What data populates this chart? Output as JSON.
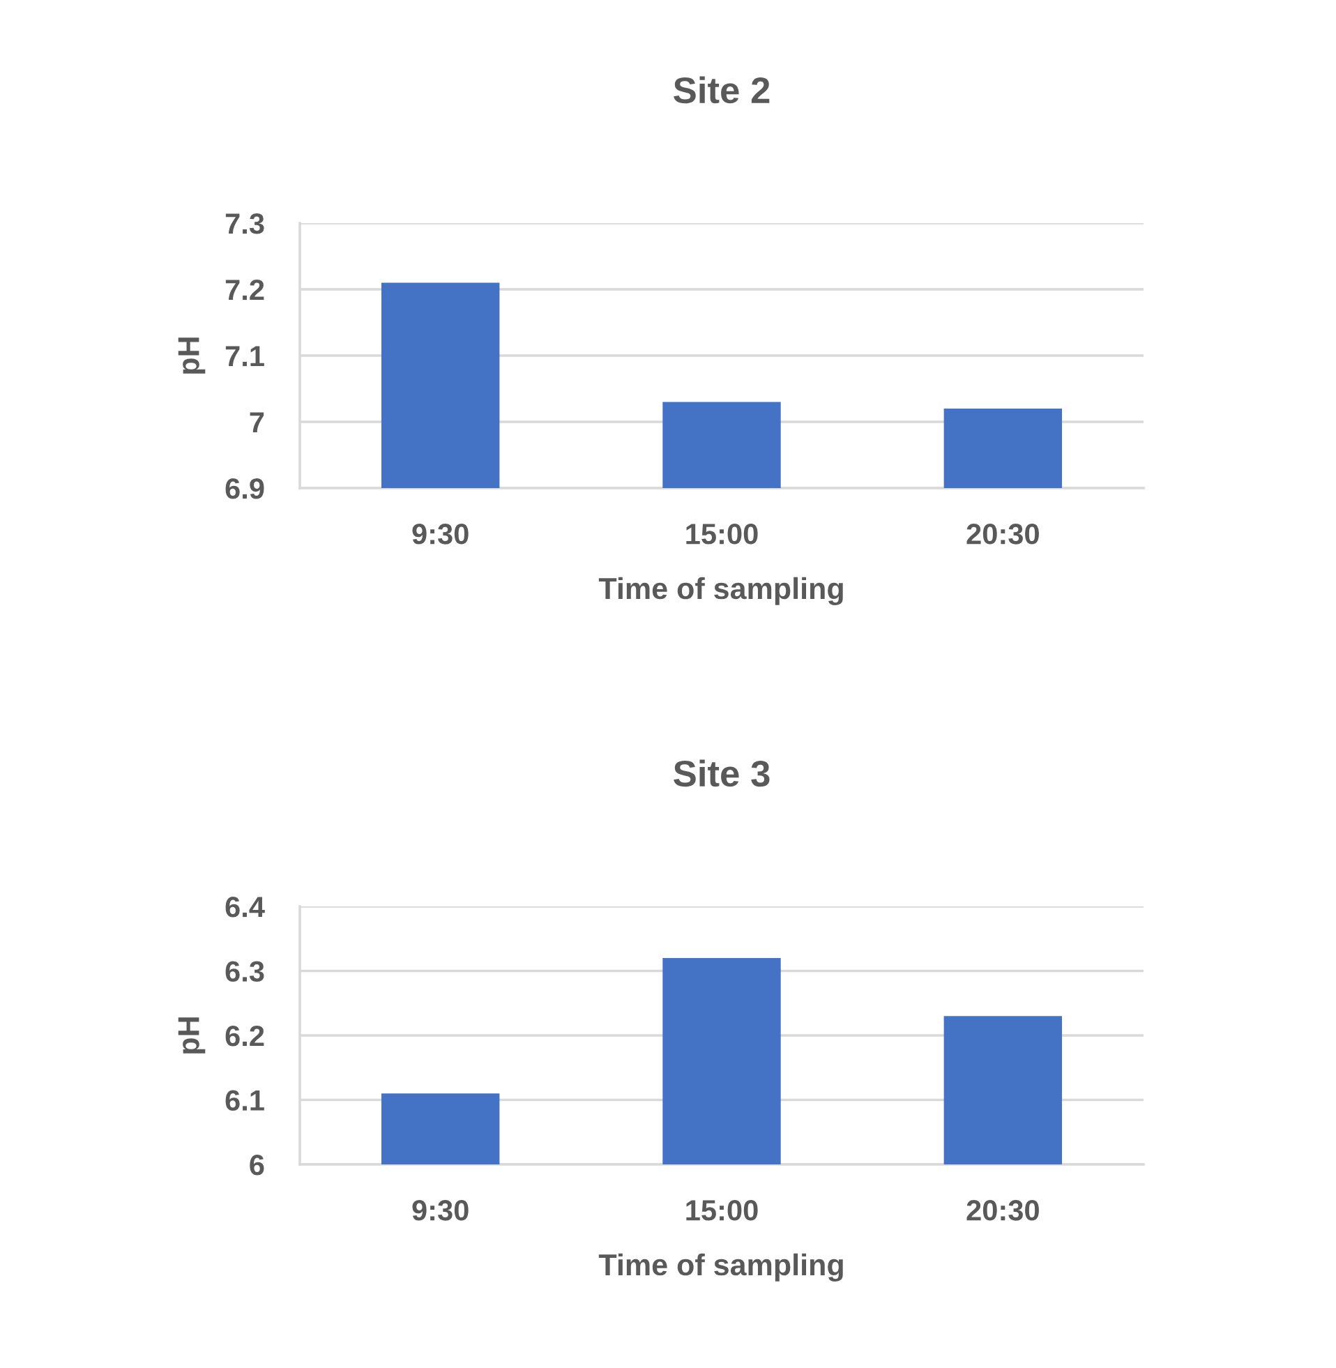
{
  "chart_data": [
    {
      "type": "bar",
      "title": "Site 2",
      "xlabel": "Time of sampling",
      "ylabel": "pH",
      "categories": [
        "9:30",
        "15:00",
        "20:30"
      ],
      "values": [
        7.21,
        7.03,
        7.02
      ],
      "color": "#4472c4",
      "ylim": [
        6.9,
        7.3
      ],
      "yticks": [
        6.9,
        7,
        7.1,
        7.2,
        7.3
      ],
      "grid": "y"
    },
    {
      "type": "bar",
      "title": "Site 3",
      "xlabel": "Time of sampling",
      "ylabel": "pH",
      "categories": [
        "9:30",
        "15:00",
        "20:30"
      ],
      "values": [
        6.11,
        6.32,
        6.23
      ],
      "color": "#4472c4",
      "ylim": [
        6,
        6.4
      ],
      "yticks": [
        6,
        6.1,
        6.2,
        6.3,
        6.4
      ],
      "grid": "y"
    }
  ]
}
